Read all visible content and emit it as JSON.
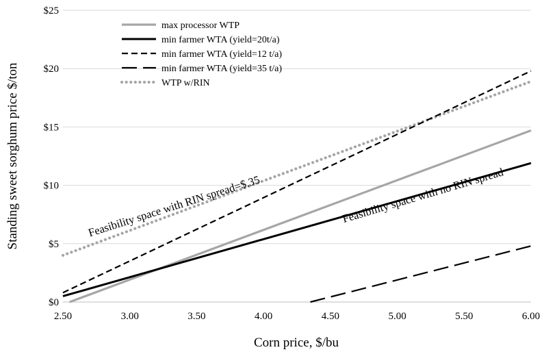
{
  "chart_data": {
    "type": "line",
    "xlabel": "Corn price, $/bu",
    "ylabel": "Standing sweet sorghum price $/ton",
    "xlim": [
      2.5,
      6.0
    ],
    "ylim": [
      0,
      25
    ],
    "x_ticks": [
      "2.50",
      "3.00",
      "3.50",
      "4.00",
      "4.50",
      "5.00",
      "5.50",
      "6.00"
    ],
    "y_ticks": [
      "$0",
      "$5",
      "$10",
      "$15",
      "$20",
      "$25"
    ],
    "grid": "horizontal",
    "legend_position": "top-left",
    "series": [
      {
        "name": "max processor WTP",
        "color": "#a6a6a6",
        "style": "solid-thick",
        "x": [
          2.55,
          6.0
        ],
        "y": [
          0,
          14.7
        ]
      },
      {
        "name": "min farmer WTA (yield=20t/a)",
        "color": "#000000",
        "style": "solid",
        "x": [
          2.5,
          6.0
        ],
        "y": [
          0.5,
          11.9
        ]
      },
      {
        "name": "min farmer WTA (yield=12 t/a)",
        "color": "#000000",
        "style": "short-dash",
        "x": [
          2.5,
          6.0
        ],
        "y": [
          0.8,
          19.8
        ]
      },
      {
        "name": "min farmer WTA (yield=35 t/a)",
        "color": "#000000",
        "style": "long-dash",
        "x": [
          4.35,
          6.0
        ],
        "y": [
          0,
          4.8
        ]
      },
      {
        "name": "WTP w/RIN",
        "color": "#a6a6a6",
        "style": "dotted",
        "x": [
          2.5,
          6.0
        ],
        "y": [
          4.0,
          18.9
        ]
      }
    ],
    "annotations": [
      {
        "text": "Feasibility space with RIN spread=$.35",
        "x": 2.7,
        "y": 5.6
      },
      {
        "text": "Feasibility space with no RIN spread",
        "x": 4.6,
        "y": 6.8
      }
    ]
  }
}
